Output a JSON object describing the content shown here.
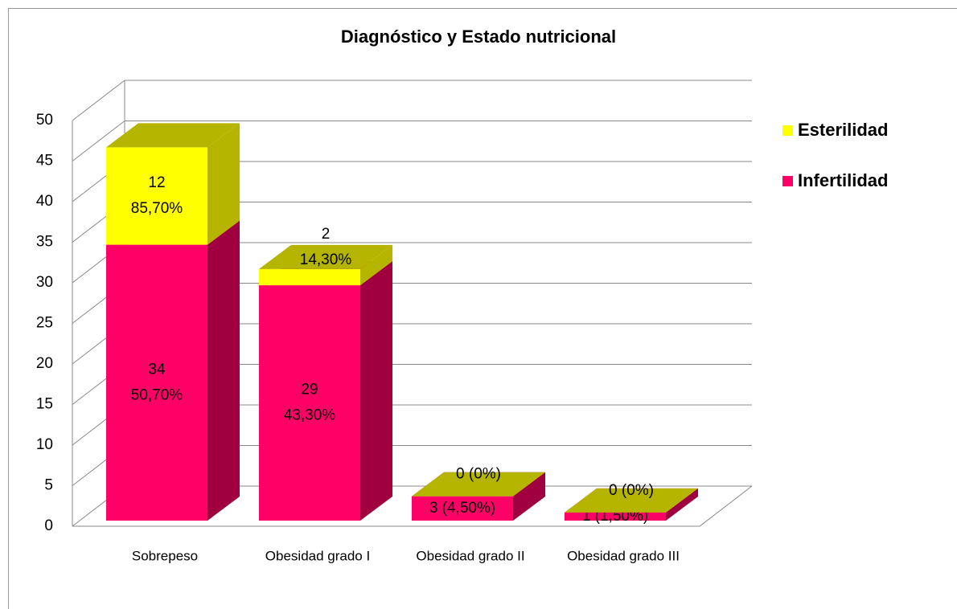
{
  "chart_data": {
    "type": "bar3d_stacked",
    "title": "Diagnóstico  y Estado nutricional",
    "categories": [
      "Sobrepeso",
      "Obesidad grado I",
      "Obesidad grado II",
      "Obesidad grado III"
    ],
    "series": [
      {
        "name": "Infertilidad",
        "color": "#ff0066",
        "side_color": "#a0003f",
        "values": [
          34,
          29,
          3,
          1
        ],
        "value_labels": [
          [
            "34",
            "50,70%"
          ],
          [
            "29",
            "43,30%"
          ],
          [
            "3 (4,50%)"
          ],
          [
            "1 (1,50%)"
          ]
        ]
      },
      {
        "name": "Esterilidad",
        "color": "#ffff00",
        "side_color": "#b5b500",
        "values": [
          12,
          2,
          0,
          0
        ],
        "value_labels": [
          [
            "12",
            "85,70%"
          ],
          [
            "2",
            "14,30%"
          ],
          [
            "0 (0%)"
          ],
          [
            "0 (0%)"
          ]
        ]
      }
    ],
    "ylim": [
      0,
      50
    ],
    "yticks": [
      0,
      5,
      10,
      15,
      20,
      25,
      30,
      35,
      40,
      45,
      50
    ],
    "grid": true,
    "legend": "right"
  }
}
